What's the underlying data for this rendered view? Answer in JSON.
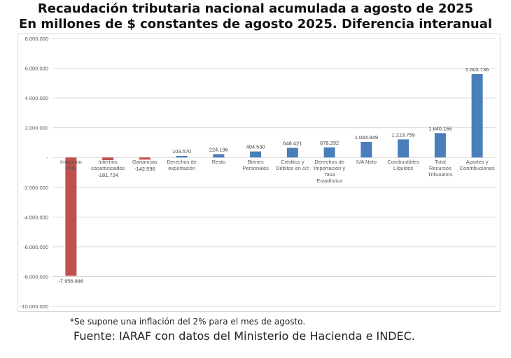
{
  "header": {
    "title": "Recaudación tributaria nacional acumulada a agosto de 2025",
    "subtitle": "En millones de $ constantes de agosto 2025. Diferencia interanual"
  },
  "footer": {
    "note": "*Se supone una inflación del 2% para el mes de agosto.",
    "source": "Fuente: IARAF con datos del Ministerio de Hacienda e INDEC."
  },
  "chart_data": {
    "type": "bar",
    "title": "Recaudación tributaria nacional acumulada a agosto de 2025",
    "subtitle": "En millones de $ constantes de agosto 2025. Diferencia interanual",
    "ylim": [
      -10000000,
      8000000
    ],
    "ytick_values": [
      8000000,
      6000000,
      4000000,
      2000000,
      0,
      -2000000,
      -4000000,
      -6000000,
      -8000000,
      -10000000
    ],
    "ytick_labels": [
      "8.000.000",
      "6.000.000",
      "4.000.000",
      "2.000.000",
      "-",
      "-2.000.000",
      "-4.000.000",
      "-6.000.000",
      "-8.000.000",
      "-10.000.000"
    ],
    "grid": true,
    "legend": "none",
    "categories": [
      [
        "Impuesto",
        "PAIS"
      ],
      [
        "Internos",
        "coparticipados"
      ],
      [
        "Ganancias"
      ],
      [
        "Derechos de",
        "exportación"
      ],
      [
        "Resto"
      ],
      [
        "Bienes",
        "Personales"
      ],
      [
        "Créditos y",
        "Débitos en c/c"
      ],
      [
        "Derechos de",
        "Importación y",
        "Tasa",
        "Estadística"
      ],
      [
        "IVA Neto"
      ],
      [
        "Combustibles",
        "Líquidos"
      ],
      [
        "Total",
        "Recursos",
        "Tributarios"
      ],
      [
        "Aportes y",
        "Contribuciones"
      ]
    ],
    "values": [
      -7956846,
      -181724,
      -142596,
      103570,
      224196,
      404530,
      648421,
      678292,
      1044849,
      1213759,
      1640155,
      5603736
    ],
    "value_labels": [
      "-7.956.846",
      "-181.724",
      "-142.596",
      "103.570",
      "224.196",
      "404.530",
      "648.421",
      "678.292",
      "1.044.849",
      "1.213.759",
      "1.640.155",
      "5.603.736"
    ],
    "colors": {
      "positive": "#4a7ebb",
      "negative": "#c0504d",
      "grid": "#d9d9d9",
      "axis_text": "#595959"
    }
  }
}
